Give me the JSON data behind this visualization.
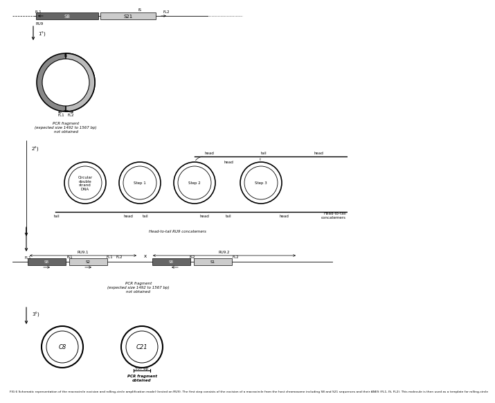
{
  "bg_color": "#ffffff",
  "dark_box_color": "#666666",
  "light_box_color": "#cccccc",
  "step_label_1": "1°)",
  "step_label_2": "2°)",
  "step_label_3": "3°)",
  "ru9_label": "RU9",
  "fl1_label": "FL1",
  "fl2_label": "FL2",
  "is_label": "IS",
  "s8_label": "S8",
  "s21_label": "S21",
  "is1_label": "IS1",
  "is2_label": "IS2",
  "ru9_1_label": "RU9.1",
  "ru9_2_label": "RU9.2",
  "circular_dna_label": "Circular\ndouble\nstrand\nDNA",
  "step1_label": "Step 1",
  "step2_label": "Step 2",
  "step3_label": "Step 3",
  "head_label": "head",
  "tail_label": "tail",
  "head_to_tail_label": "Head-to-tail\nconcatemers",
  "head_to_tail_ru9_label": "Head-to-tail RU9 concatemers",
  "pcr_frag_1": "PCR fragment\n(expected size 1492 to 1567 bp)\nnot obtained",
  "pcr_frag_2": "PCR fragment\n(expected size 1492 to 1567 bp)\nnot obtained",
  "pcr_frag_3": "PCR fragment\nobtained",
  "c8_label": "C8",
  "c21_label": "C21",
  "bp_label": "507 bp",
  "caption": "FIG 6 Schematic representation of the macrocircle excision and rolling-circle amplification model (tested on RU9). The first step consists of the excision of a macrocircle from the host chromosome including S8 and S21 sequences and their ANES (FL1, IS, FL2). This molecule is then used as a template for rolling-circle"
}
